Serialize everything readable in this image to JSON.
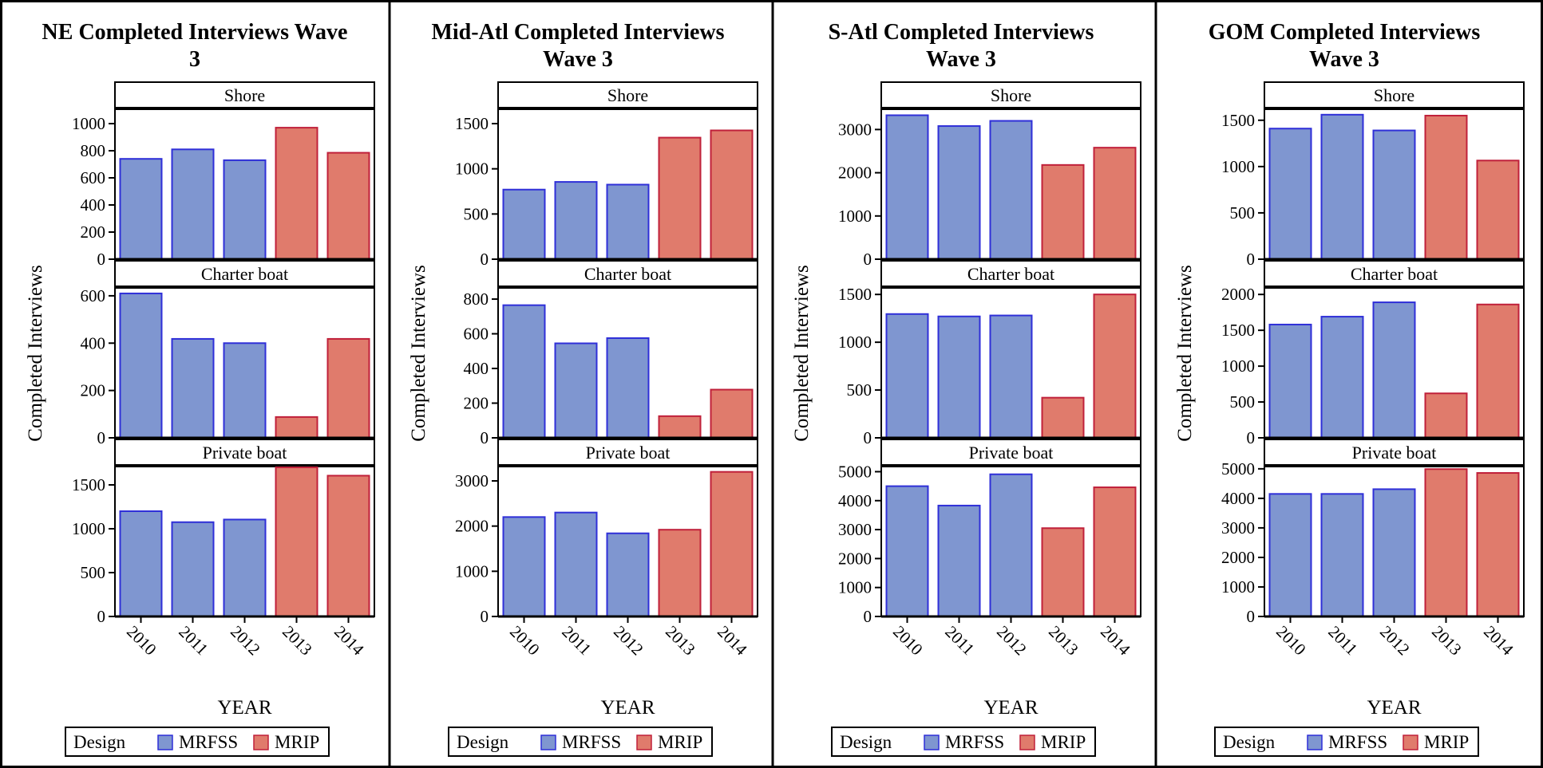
{
  "chart_data": [
    {
      "type": "bar",
      "title_lines": [
        "NE Completed Interviews Wave",
        "3"
      ],
      "xlabel": "YEAR",
      "ylabel": "Completed Interviews",
      "categories": [
        "2010",
        "2011",
        "2012",
        "2013",
        "2014"
      ],
      "legend": {
        "title": "Design",
        "items": [
          {
            "name": "MRFSS",
            "color": "#7f96d0",
            "border": "#2f2fd8"
          },
          {
            "name": "MRIP",
            "color": "#e07b6c",
            "border": "#c0203a"
          }
        ]
      },
      "design_by_year": [
        "MRFSS",
        "MRFSS",
        "MRFSS",
        "MRIP",
        "MRIP"
      ],
      "panels": [
        {
          "label": "Shore",
          "ylim": [
            0,
            1100
          ],
          "ticks": [
            0,
            200,
            400,
            600,
            800,
            1000
          ],
          "values": [
            740,
            810,
            730,
            970,
            785
          ]
        },
        {
          "label": "Charter boat",
          "ylim": [
            0,
            630
          ],
          "ticks": [
            0,
            200,
            400,
            600
          ],
          "values": [
            610,
            418,
            400,
            88,
            418
          ]
        },
        {
          "label": "Private boat",
          "ylim": [
            0,
            1700
          ],
          "ticks": [
            0,
            500,
            1000,
            1500
          ],
          "values": [
            1200,
            1075,
            1105,
            1700,
            1605
          ]
        }
      ]
    },
    {
      "type": "bar",
      "title_lines": [
        "Mid-Atl Completed Interviews",
        "Wave 3"
      ],
      "xlabel": "YEAR",
      "ylabel": "Completed Interviews",
      "categories": [
        "2010",
        "2011",
        "2012",
        "2013",
        "2014"
      ],
      "legend": {
        "title": "Design",
        "items": [
          {
            "name": "MRFSS",
            "color": "#7f96d0",
            "border": "#2f2fd8"
          },
          {
            "name": "MRIP",
            "color": "#e07b6c",
            "border": "#c0203a"
          }
        ]
      },
      "design_by_year": [
        "MRFSS",
        "MRFSS",
        "MRFSS",
        "MRIP",
        "MRIP"
      ],
      "panels": [
        {
          "label": "Shore",
          "ylim": [
            0,
            1650
          ],
          "ticks": [
            0,
            500,
            1000,
            1500
          ],
          "values": [
            770,
            855,
            825,
            1345,
            1425
          ]
        },
        {
          "label": "Charter boat",
          "ylim": [
            0,
            860
          ],
          "ticks": [
            0,
            200,
            400,
            600,
            800
          ],
          "values": [
            765,
            545,
            575,
            125,
            278
          ]
        },
        {
          "label": "Private boat",
          "ylim": [
            0,
            3300
          ],
          "ticks": [
            0,
            1000,
            2000,
            3000
          ],
          "values": [
            2200,
            2300,
            1840,
            1920,
            3200
          ]
        }
      ]
    },
    {
      "type": "bar",
      "title_lines": [
        "S-Atl Completed Interviews",
        "Wave 3"
      ],
      "xlabel": "YEAR",
      "ylabel": "Completed Interviews",
      "categories": [
        "2010",
        "2011",
        "2012",
        "2013",
        "2014"
      ],
      "legend": {
        "title": "Design",
        "items": [
          {
            "name": "MRFSS",
            "color": "#7f96d0",
            "border": "#2f2fd8"
          },
          {
            "name": "MRIP",
            "color": "#e07b6c",
            "border": "#c0203a"
          }
        ]
      },
      "design_by_year": [
        "MRFSS",
        "MRFSS",
        "MRFSS",
        "MRIP",
        "MRIP"
      ],
      "panels": [
        {
          "label": "Shore",
          "ylim": [
            0,
            3450
          ],
          "ticks": [
            0,
            1000,
            2000,
            3000
          ],
          "values": [
            3330,
            3080,
            3200,
            2180,
            2580
          ]
        },
        {
          "label": "Charter boat",
          "ylim": [
            0,
            1560
          ],
          "ticks": [
            0,
            500,
            1000,
            1500
          ],
          "values": [
            1295,
            1270,
            1280,
            420,
            1500
          ]
        },
        {
          "label": "Private boat",
          "ylim": [
            0,
            5150
          ],
          "ticks": [
            0,
            1000,
            2000,
            3000,
            4000,
            5000
          ],
          "values": [
            4500,
            3830,
            4910,
            3050,
            4460
          ]
        }
      ]
    },
    {
      "type": "bar",
      "title_lines": [
        "GOM Completed Interviews",
        "Wave 3"
      ],
      "xlabel": "YEAR",
      "ylabel": "Completed Interviews",
      "categories": [
        "2010",
        "2011",
        "2012",
        "2013",
        "2014"
      ],
      "legend": {
        "title": "Design",
        "items": [
          {
            "name": "MRFSS",
            "color": "#7f96d0",
            "border": "#2f2fd8"
          },
          {
            "name": "MRIP",
            "color": "#e07b6c",
            "border": "#c0203a"
          }
        ]
      },
      "design_by_year": [
        "MRFSS",
        "MRFSS",
        "MRFSS",
        "MRIP",
        "MRIP"
      ],
      "panels": [
        {
          "label": "Shore",
          "ylim": [
            0,
            1610
          ],
          "ticks": [
            0,
            500,
            1000,
            1500
          ],
          "values": [
            1410,
            1560,
            1390,
            1550,
            1065
          ]
        },
        {
          "label": "Charter boat",
          "ylim": [
            0,
            2080
          ],
          "ticks": [
            0,
            500,
            1000,
            1500,
            2000
          ],
          "values": [
            1580,
            1690,
            1890,
            620,
            1860
          ]
        },
        {
          "label": "Private boat",
          "ylim": [
            0,
            5050
          ],
          "ticks": [
            0,
            1000,
            2000,
            3000,
            4000,
            5000
          ],
          "values": [
            4150,
            4150,
            4310,
            4990,
            4860
          ]
        }
      ]
    }
  ]
}
